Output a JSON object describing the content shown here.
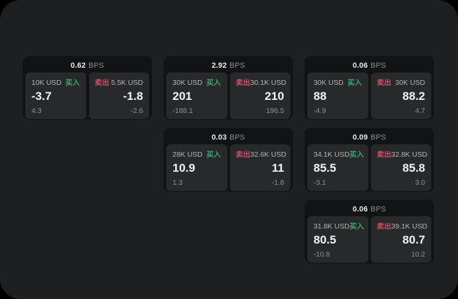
{
  "window": {
    "bg": "#1e1f21",
    "outer_bg": "#000000"
  },
  "labels": {
    "bps": "BPS",
    "buy": "买入",
    "sell": "卖出"
  },
  "colors": {
    "buy_green": "#36a872",
    "sell_red": "#d04f67",
    "card_bg": "#121314",
    "panel_bg": "#28292b"
  },
  "cards": [
    {
      "row": 1,
      "col": 1,
      "bps": "0.62",
      "buy": {
        "amount": "10K USD",
        "price": "-3.7",
        "delta": "4.3"
      },
      "sell": {
        "amount": "5.5K USD",
        "price": "-1.8",
        "delta": "-2.6"
      }
    },
    {
      "row": 1,
      "col": 2,
      "bps": "2.92",
      "buy": {
        "amount": "30K USD",
        "price": "201",
        "delta": "-188.1"
      },
      "sell": {
        "amount": "30.1K USD",
        "price": "210",
        "delta": "196.5"
      }
    },
    {
      "row": 1,
      "col": 3,
      "bps": "0.06",
      "buy": {
        "amount": "30K USD",
        "price": "88",
        "delta": "-4.9"
      },
      "sell": {
        "amount": "30K USD",
        "price": "88.2",
        "delta": "4.7"
      }
    },
    {
      "row": 2,
      "col": 2,
      "bps": "0.03",
      "buy": {
        "amount": "28K USD",
        "price": "10.9",
        "delta": "1.3"
      },
      "sell": {
        "amount": "32.6K USD",
        "price": "11",
        "delta": "-1.8"
      }
    },
    {
      "row": 2,
      "col": 3,
      "bps": "0.09",
      "buy": {
        "amount": "34.1K USD",
        "price": "85.5",
        "delta": "-3.1"
      },
      "sell": {
        "amount": "32.8K USD",
        "price": "85.8",
        "delta": "3.0"
      }
    },
    {
      "row": 3,
      "col": 3,
      "bps": "0.06",
      "buy": {
        "amount": "31.8K USD",
        "price": "80.5",
        "delta": "-10.8"
      },
      "sell": {
        "amount": "39.1K USD",
        "price": "80.7",
        "delta": "10.2"
      }
    }
  ]
}
